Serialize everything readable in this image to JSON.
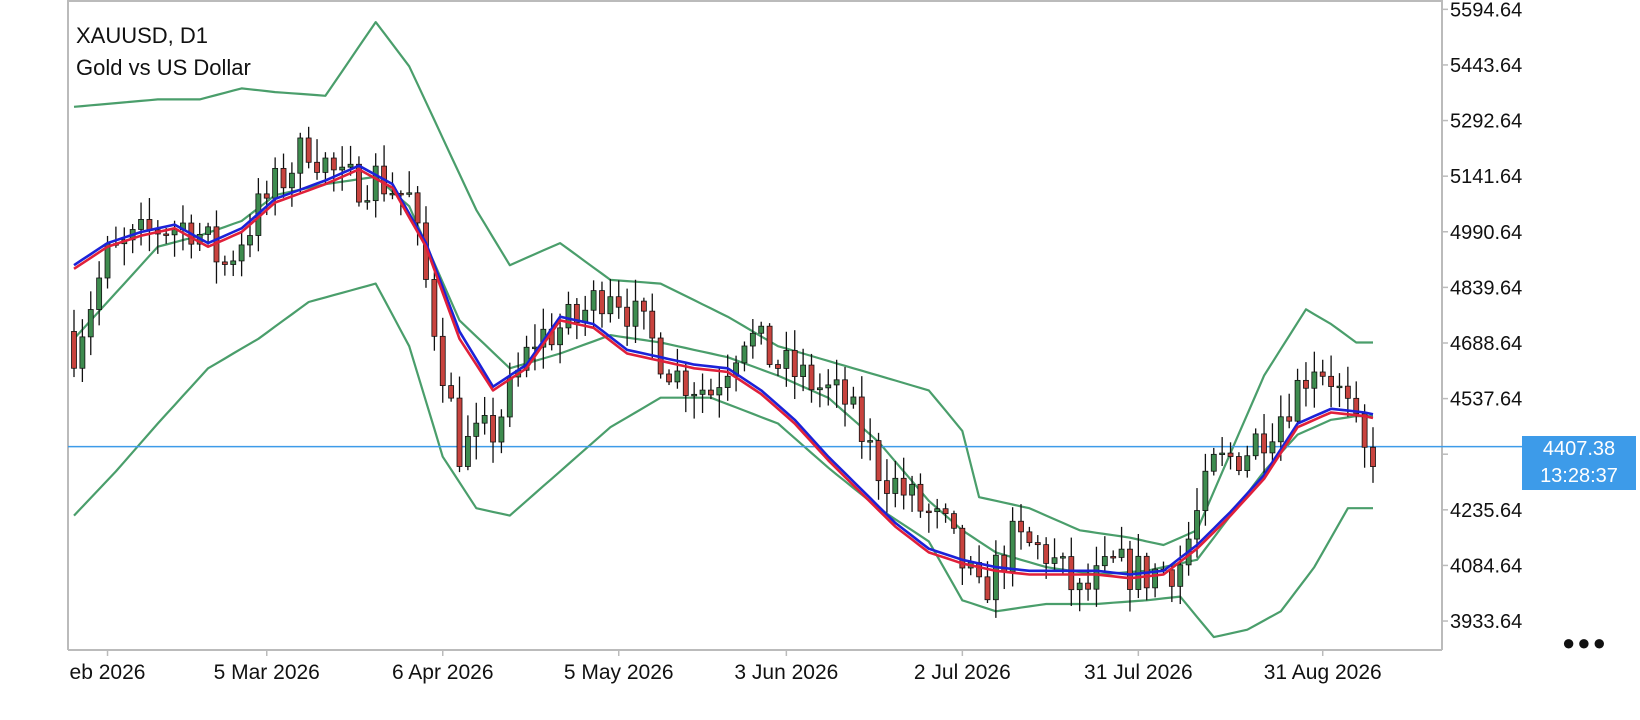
{
  "header": {
    "symbol": "XAUUSD, D1",
    "description": "Gold vs US Dollar"
  },
  "current_price": {
    "value": "4407.38",
    "countdown": "13:28:37"
  },
  "menu": {
    "more_icon": "more-dots-icon"
  },
  "colors": {
    "bull": "#3e8c4f",
    "bear": "#c8433e",
    "wick": "#111111",
    "bollinger": "#4a9e6b",
    "ma_fast": "#1b22d8",
    "ma_slow": "#e0203a",
    "price_line": "#3d9be9",
    "grid": "#bbbbbb"
  },
  "chart_data": {
    "type": "candlestick",
    "title": "XAUUSD, D1",
    "subtitle": "Gold vs US Dollar",
    "xlabel": "",
    "ylabel": "",
    "ylim": [
      3855,
      5620
    ],
    "y_ticks": [
      5594.64,
      5443.64,
      5292.64,
      5141.64,
      4990.64,
      4839.64,
      4688.64,
      4537.64,
      4386.64,
      4235.64,
      4084.64,
      3933.64
    ],
    "y_tick_labels": [
      "5594.64",
      "5443.64",
      "5292.64",
      "5141.64",
      "4990.64",
      "4839.64",
      "4688.64",
      "4537.64",
      "",
      "4235.64",
      "4084.64",
      "3933.64"
    ],
    "x_ticks": [
      {
        "label": "eb 2026",
        "bar": 4
      },
      {
        "label": "5 Mar 2026",
        "bar": 23
      },
      {
        "label": "6 Apr 2026",
        "bar": 44
      },
      {
        "label": "5 May 2026",
        "bar": 65
      },
      {
        "label": "3 Jun 2026",
        "bar": 85
      },
      {
        "label": "2 Jul 2026",
        "bar": 106
      },
      {
        "label": "31 Jul 2026",
        "bar": 127
      },
      {
        "label": "31 Aug 2026",
        "bar": 149
      }
    ],
    "grid": false,
    "bar_count": 156,
    "current_price": 4407.38,
    "anchors": {
      "close": [
        [
          0,
          4680
        ],
        [
          4,
          4920
        ],
        [
          10,
          5000
        ],
        [
          14,
          5010
        ],
        [
          18,
          4900
        ],
        [
          22,
          5050
        ],
        [
          28,
          5230
        ],
        [
          32,
          5120
        ],
        [
          36,
          5140
        ],
        [
          40,
          5080
        ],
        [
          46,
          4400
        ],
        [
          50,
          4450
        ],
        [
          55,
          4700
        ],
        [
          60,
          4750
        ],
        [
          64,
          4850
        ],
        [
          68,
          4720
        ],
        [
          72,
          4600
        ],
        [
          76,
          4560
        ],
        [
          80,
          4720
        ],
        [
          84,
          4630
        ],
        [
          88,
          4580
        ],
        [
          92,
          4530
        ],
        [
          96,
          4350
        ],
        [
          100,
          4260
        ],
        [
          104,
          4180
        ],
        [
          108,
          4000
        ],
        [
          112,
          4150
        ],
        [
          116,
          4120
        ],
        [
          120,
          4000
        ],
        [
          124,
          4080
        ],
        [
          128,
          4060
        ],
        [
          132,
          4090
        ],
        [
          136,
          4350
        ],
        [
          140,
          4400
        ],
        [
          144,
          4500
        ],
        [
          148,
          4640
        ],
        [
          150,
          4600
        ],
        [
          152,
          4500
        ],
        [
          154,
          4380
        ],
        [
          156,
          4407
        ]
      ],
      "upper": [
        [
          0,
          5330
        ],
        [
          5,
          5340
        ],
        [
          10,
          5350
        ],
        [
          15,
          5350
        ],
        [
          20,
          5380
        ],
        [
          24,
          5370
        ],
        [
          30,
          5360
        ],
        [
          36,
          5560
        ],
        [
          40,
          5440
        ],
        [
          48,
          5050
        ],
        [
          52,
          4900
        ],
        [
          58,
          4960
        ],
        [
          64,
          4860
        ],
        [
          70,
          4850
        ],
        [
          78,
          4760
        ],
        [
          84,
          4680
        ],
        [
          90,
          4640
        ],
        [
          96,
          4600
        ],
        [
          102,
          4560
        ],
        [
          106,
          4450
        ],
        [
          108,
          4270
        ],
        [
          114,
          4240
        ],
        [
          120,
          4180
        ],
        [
          126,
          4160
        ],
        [
          130,
          4140
        ],
        [
          134,
          4180
        ],
        [
          138,
          4390
        ],
        [
          142,
          4600
        ],
        [
          147,
          4780
        ],
        [
          150,
          4740
        ],
        [
          153,
          4690
        ],
        [
          156,
          4690
        ]
      ],
      "middle": [
        [
          0,
          4700
        ],
        [
          10,
          4950
        ],
        [
          15,
          4980
        ],
        [
          20,
          5020
        ],
        [
          24,
          5090
        ],
        [
          30,
          5120
        ],
        [
          36,
          5140
        ],
        [
          40,
          5060
        ],
        [
          46,
          4750
        ],
        [
          52,
          4620
        ],
        [
          58,
          4660
        ],
        [
          64,
          4710
        ],
        [
          70,
          4690
        ],
        [
          78,
          4650
        ],
        [
          84,
          4600
        ],
        [
          90,
          4540
        ],
        [
          96,
          4420
        ],
        [
          102,
          4260
        ],
        [
          106,
          4180
        ],
        [
          110,
          4120
        ],
        [
          116,
          4080
        ],
        [
          122,
          4060
        ],
        [
          128,
          4070
        ],
        [
          134,
          4100
        ],
        [
          138,
          4220
        ],
        [
          142,
          4340
        ],
        [
          146,
          4440
        ],
        [
          150,
          4480
        ],
        [
          153,
          4490
        ],
        [
          156,
          4490
        ]
      ],
      "lower": [
        [
          0,
          4220
        ],
        [
          5,
          4340
        ],
        [
          10,
          4470
        ],
        [
          16,
          4620
        ],
        [
          22,
          4700
        ],
        [
          28,
          4800
        ],
        [
          36,
          4850
        ],
        [
          40,
          4680
        ],
        [
          44,
          4380
        ],
        [
          48,
          4240
        ],
        [
          52,
          4220
        ],
        [
          58,
          4340
        ],
        [
          64,
          4460
        ],
        [
          70,
          4540
        ],
        [
          76,
          4540
        ],
        [
          84,
          4470
        ],
        [
          90,
          4350
        ],
        [
          96,
          4240
        ],
        [
          102,
          4150
        ],
        [
          106,
          3990
        ],
        [
          110,
          3960
        ],
        [
          116,
          3980
        ],
        [
          122,
          3980
        ],
        [
          128,
          3990
        ],
        [
          132,
          4000
        ],
        [
          136,
          3890
        ],
        [
          140,
          3910
        ],
        [
          144,
          3960
        ],
        [
          148,
          4080
        ],
        [
          152,
          4240
        ],
        [
          156,
          4240
        ]
      ],
      "ma_fast": [
        [
          0,
          4900
        ],
        [
          4,
          4960
        ],
        [
          8,
          4990
        ],
        [
          12,
          5010
        ],
        [
          16,
          4960
        ],
        [
          20,
          5000
        ],
        [
          24,
          5080
        ],
        [
          30,
          5130
        ],
        [
          34,
          5170
        ],
        [
          38,
          5120
        ],
        [
          42,
          4960
        ],
        [
          46,
          4720
        ],
        [
          50,
          4570
        ],
        [
          54,
          4630
        ],
        [
          58,
          4760
        ],
        [
          62,
          4740
        ],
        [
          66,
          4670
        ],
        [
          70,
          4650
        ],
        [
          74,
          4630
        ],
        [
          78,
          4620
        ],
        [
          82,
          4560
        ],
        [
          86,
          4480
        ],
        [
          90,
          4380
        ],
        [
          94,
          4290
        ],
        [
          98,
          4200
        ],
        [
          102,
          4130
        ],
        [
          106,
          4100
        ],
        [
          110,
          4080
        ],
        [
          114,
          4070
        ],
        [
          118,
          4070
        ],
        [
          122,
          4070
        ],
        [
          126,
          4060
        ],
        [
          130,
          4070
        ],
        [
          134,
          4140
        ],
        [
          138,
          4230
        ],
        [
          142,
          4330
        ],
        [
          146,
          4470
        ],
        [
          150,
          4510
        ],
        [
          154,
          4500
        ],
        [
          156,
          4490
        ]
      ],
      "ma_slow": [
        [
          0,
          4890
        ],
        [
          4,
          4950
        ],
        [
          8,
          4980
        ],
        [
          12,
          5000
        ],
        [
          16,
          4950
        ],
        [
          20,
          4990
        ],
        [
          24,
          5070
        ],
        [
          30,
          5120
        ],
        [
          34,
          5160
        ],
        [
          38,
          5110
        ],
        [
          42,
          4950
        ],
        [
          46,
          4700
        ],
        [
          50,
          4560
        ],
        [
          54,
          4620
        ],
        [
          58,
          4750
        ],
        [
          62,
          4730
        ],
        [
          66,
          4660
        ],
        [
          70,
          4640
        ],
        [
          74,
          4620
        ],
        [
          78,
          4610
        ],
        [
          82,
          4550
        ],
        [
          86,
          4470
        ],
        [
          90,
          4370
        ],
        [
          94,
          4280
        ],
        [
          98,
          4190
        ],
        [
          102,
          4120
        ],
        [
          106,
          4090
        ],
        [
          110,
          4070
        ],
        [
          114,
          4060
        ],
        [
          118,
          4060
        ],
        [
          122,
          4060
        ],
        [
          126,
          4050
        ],
        [
          130,
          4060
        ],
        [
          134,
          4130
        ],
        [
          138,
          4220
        ],
        [
          142,
          4320
        ],
        [
          146,
          4460
        ],
        [
          150,
          4500
        ],
        [
          154,
          4490
        ],
        [
          156,
          4480
        ]
      ]
    },
    "series": [
      {
        "type": "candlestick",
        "source": "close"
      },
      {
        "type": "line",
        "source": "upper"
      },
      {
        "type": "line",
        "source": "middle"
      },
      {
        "type": "line",
        "source": "lower"
      },
      {
        "type": "line",
        "source": "ma_fast"
      },
      {
        "type": "line",
        "source": "ma_slow"
      }
    ]
  }
}
